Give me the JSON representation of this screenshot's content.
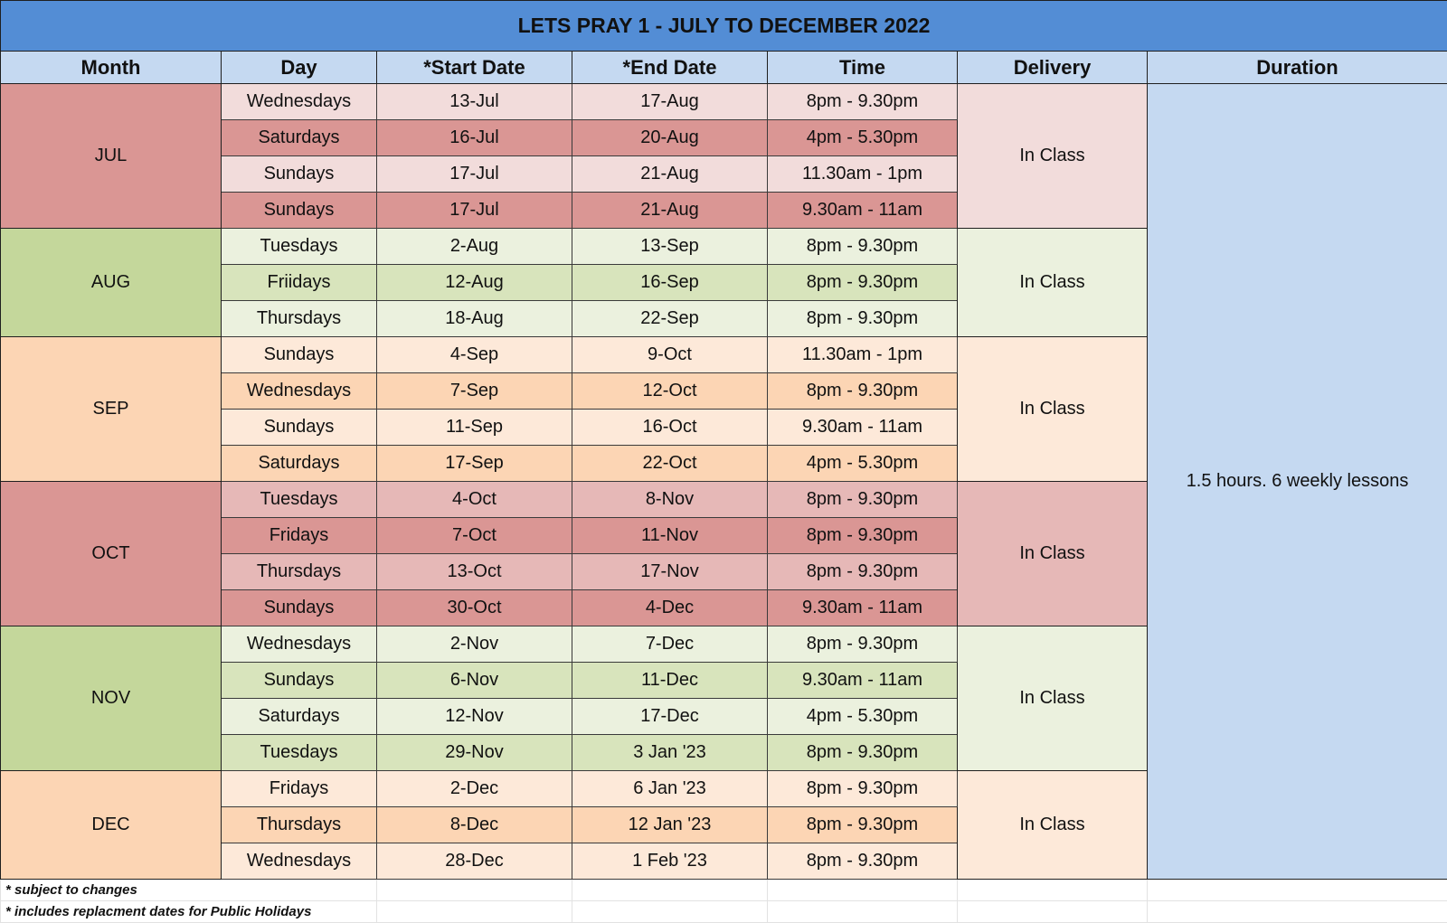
{
  "title": "LETS PRAY 1 - JULY TO DECEMBER 2022",
  "headers": {
    "month": "Month",
    "day": "Day",
    "start": "*Start Date",
    "end": "*End Date",
    "time": "Time",
    "delivery": "Delivery",
    "duration": "Duration"
  },
  "duration_text": "1.5 hours. 6 weekly lessons",
  "colors": {
    "title_bg": "#538dd5",
    "header_bg": "#c5d9f1",
    "duration_bg": "#c5d9f1",
    "red_dark": "#da9694",
    "red_light": "#f2dcdb",
    "red_mid": "#e6b8b7",
    "green_dark": "#c4d79b",
    "green_light": "#ebf1de",
    "green_mid": "#d8e4bc",
    "orange_dark": "#fcd5b4",
    "orange_light": "#fde9d9"
  },
  "months": [
    {
      "month": "JUL",
      "delivery": "In Class",
      "month_color": "#da9694",
      "delivery_color": "#f2dcdb",
      "rows": [
        {
          "day": "Wednesdays",
          "start": "13-Jul",
          "end": "17-Aug",
          "time": "8pm - 9.30pm",
          "color": "#f2dcdb"
        },
        {
          "day": "Saturdays",
          "start": "16-Jul",
          "end": "20-Aug",
          "time": "4pm - 5.30pm",
          "color": "#da9694"
        },
        {
          "day": "Sundays",
          "start": "17-Jul",
          "end": "21-Aug",
          "time": "11.30am - 1pm",
          "color": "#f2dcdb"
        },
        {
          "day": "Sundays",
          "start": "17-Jul",
          "end": "21-Aug",
          "time": "9.30am - 11am",
          "color": "#da9694"
        }
      ]
    },
    {
      "month": "AUG",
      "delivery": "In Class",
      "month_color": "#c4d79b",
      "delivery_color": "#ebf1de",
      "rows": [
        {
          "day": "Tuesdays",
          "start": "2-Aug",
          "end": "13-Sep",
          "time": "8pm - 9.30pm",
          "color": "#ebf1de"
        },
        {
          "day": "Friidays",
          "start": "12-Aug",
          "end": "16-Sep",
          "time": "8pm - 9.30pm",
          "color": "#d8e4bc"
        },
        {
          "day": "Thursdays",
          "start": "18-Aug",
          "end": "22-Sep",
          "time": "8pm - 9.30pm",
          "color": "#ebf1de"
        }
      ]
    },
    {
      "month": "SEP",
      "delivery": "In Class",
      "month_color": "#fcd5b4",
      "delivery_color": "#fde9d9",
      "rows": [
        {
          "day": "Sundays",
          "start": "4-Sep",
          "end": "9-Oct",
          "time": "11.30am - 1pm",
          "color": "#fde9d9"
        },
        {
          "day": "Wednesdays",
          "start": "7-Sep",
          "end": "12-Oct",
          "time": "8pm - 9.30pm",
          "color": "#fcd5b4"
        },
        {
          "day": "Sundays",
          "start": "11-Sep",
          "end": "16-Oct",
          "time": "9.30am - 11am",
          "color": "#fde9d9"
        },
        {
          "day": "Saturdays",
          "start": "17-Sep",
          "end": "22-Oct",
          "time": "4pm - 5.30pm",
          "color": "#fcd5b4"
        }
      ]
    },
    {
      "month": "OCT",
      "delivery": "In Class",
      "month_color": "#da9694",
      "delivery_color": "#e6b8b7",
      "rows": [
        {
          "day": "Tuesdays",
          "start": "4-Oct",
          "end": "8-Nov",
          "time": "8pm - 9.30pm",
          "color": "#e6b8b7"
        },
        {
          "day": "Fridays",
          "start": "7-Oct",
          "end": "11-Nov",
          "time": "8pm - 9.30pm",
          "color": "#da9694"
        },
        {
          "day": "Thursdays",
          "start": "13-Oct",
          "end": "17-Nov",
          "time": "8pm - 9.30pm",
          "color": "#e6b8b7"
        },
        {
          "day": "Sundays",
          "start": "30-Oct",
          "end": "4-Dec",
          "time": "9.30am - 11am",
          "color": "#da9694"
        }
      ]
    },
    {
      "month": "NOV",
      "delivery": "In Class",
      "month_color": "#c4d79b",
      "delivery_color": "#ebf1de",
      "rows": [
        {
          "day": "Wednesdays",
          "start": "2-Nov",
          "end": "7-Dec",
          "time": "8pm - 9.30pm",
          "color": "#ebf1de"
        },
        {
          "day": "Sundays",
          "start": "6-Nov",
          "end": "11-Dec",
          "time": "9.30am - 11am",
          "color": "#d8e4bc"
        },
        {
          "day": "Saturdays",
          "start": "12-Nov",
          "end": "17-Dec",
          "time": "4pm - 5.30pm",
          "color": "#ebf1de"
        },
        {
          "day": "Tuesdays",
          "start": "29-Nov",
          "end": "3 Jan '23",
          "time": "8pm - 9.30pm",
          "color": "#d8e4bc"
        }
      ]
    },
    {
      "month": "DEC",
      "delivery": "In Class",
      "month_color": "#fcd5b4",
      "delivery_color": "#fde9d9",
      "rows": [
        {
          "day": "Fridays",
          "start": "2-Dec",
          "end": "6 Jan '23",
          "time": "8pm - 9.30pm",
          "color": "#fde9d9"
        },
        {
          "day": "Thursdays",
          "start": "8-Dec",
          "end": "12 Jan '23",
          "time": "8pm - 9.30pm",
          "color": "#fcd5b4"
        },
        {
          "day": "Wednesdays",
          "start": "28-Dec",
          "end": "1 Feb '23",
          "time": "8pm - 9.30pm",
          "color": "#fde9d9"
        }
      ]
    }
  ],
  "notes": [
    "* subject to changes",
    "* includes replacment dates for Public Holidays"
  ]
}
